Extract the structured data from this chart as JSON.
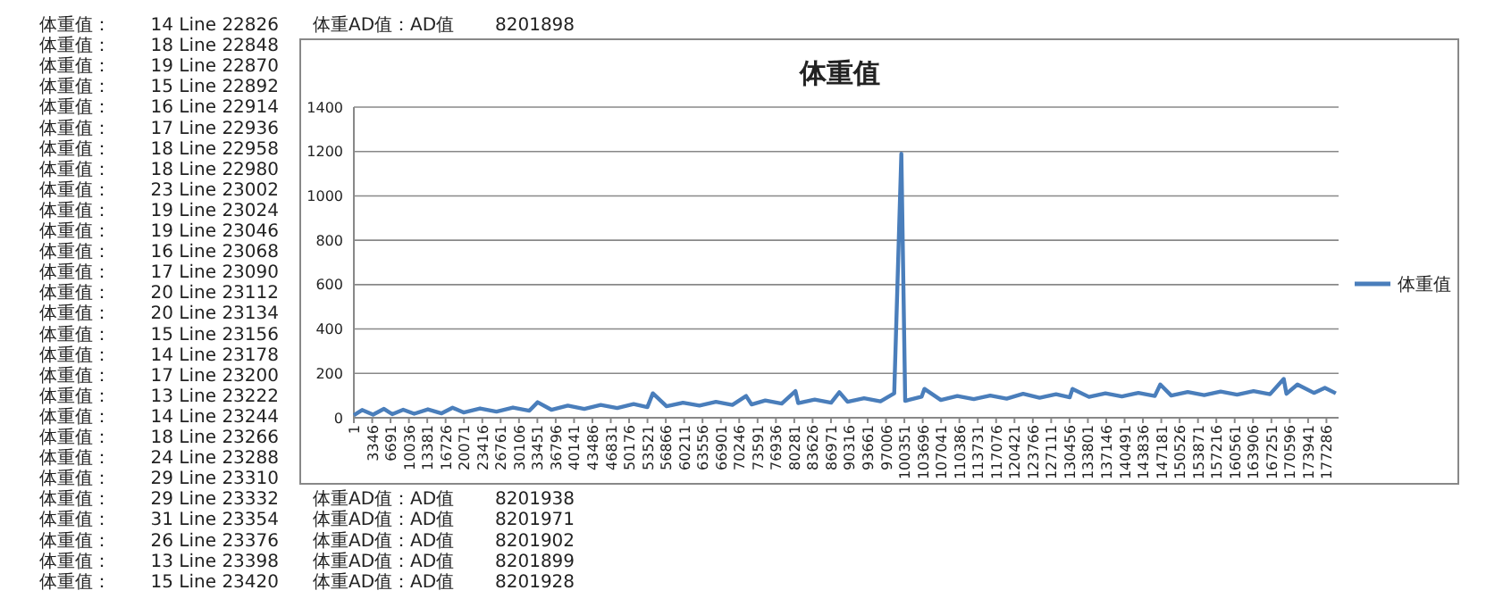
{
  "chart_data": {
    "type": "line",
    "title": "体重值",
    "x": [
      1,
      1500,
      3500,
      5500,
      7000,
      9000,
      11000,
      13500,
      16000,
      18000,
      20000,
      23000,
      26000,
      29000,
      32000,
      33500,
      36000,
      39000,
      42000,
      45000,
      48000,
      51000,
      53500,
      54500,
      57000,
      60000,
      63000,
      66000,
      69000,
      71500,
      72500,
      75000,
      78000,
      80500,
      81000,
      84000,
      87000,
      88500,
      90000,
      93000,
      96000,
      98500,
      99800,
      100500,
      103500,
      104000,
      107000,
      110000,
      113000,
      116000,
      119000,
      122000,
      125000,
      128000,
      130500,
      131000,
      134000,
      137000,
      140000,
      143000,
      146000,
      147000,
      149000,
      152000,
      155000,
      158000,
      161000,
      164000,
      167000,
      169500,
      170000,
      172000,
      175000,
      177000,
      179000
    ],
    "series": [
      {
        "name": "体重值",
        "color": "#4a7ebb",
        "values": [
          12,
          35,
          14,
          40,
          16,
          36,
          18,
          38,
          20,
          45,
          24,
          42,
          28,
          46,
          32,
          70,
          36,
          55,
          40,
          58,
          44,
          62,
          48,
          110,
          52,
          68,
          55,
          72,
          58,
          98,
          60,
          78,
          64,
          120,
          66,
          82,
          68,
          115,
          72,
          88,
          74,
          110,
          1190,
          76,
          95,
          130,
          80,
          98,
          84,
          100,
          86,
          108,
          90,
          106,
          92,
          130,
          94,
          110,
          96,
          112,
          98,
          150,
          100,
          116,
          102,
          118,
          104,
          120,
          106,
          175,
          108,
          150,
          112,
          135,
          110
        ]
      }
    ],
    "xlim": [
      1,
      179500
    ],
    "xticks": [
      1,
      3346,
      6691,
      10036,
      13381,
      16726,
      20071,
      23416,
      26761,
      30106,
      33451,
      36796,
      40141,
      43486,
      46831,
      50176,
      53521,
      56866,
      60211,
      63556,
      66901,
      70246,
      73591,
      76936,
      80281,
      83626,
      86971,
      90316,
      93661,
      97006,
      100351,
      103696,
      107041,
      110386,
      113731,
      117076,
      120421,
      123766,
      127111,
      130456,
      133801,
      137146,
      140491,
      143836,
      147181,
      150526,
      153871,
      157216,
      160561,
      163906,
      167251,
      170596,
      173941,
      177286
    ],
    "ylim": [
      0,
      1400
    ],
    "yticks": [
      0,
      200,
      400,
      600,
      800,
      1000,
      1200,
      1400
    ],
    "grid": "y",
    "legend": "right",
    "marker": "none",
    "line_style": "solid",
    "annotations": [
      "体重值：",
      "14 Line 22826",
      "体重值：",
      "18 Line 22848",
      "体重值：",
      "19 Line 22870",
      "体重值：",
      "15 Line 22892",
      "体重值：",
      "16 Line 22914",
      "体重值：",
      "17 Line 22936",
      "体重值：",
      "18 Line 22958",
      "体重值：",
      "18 Line 22980",
      "体重值：",
      "23 Line 23002",
      "体重值：",
      "19 Line 23024",
      "体重值：",
      "19 Line 23046",
      "体重值：",
      "16 Line 23068",
      "体重值：",
      "17 Line 23090",
      "体重值：",
      "20 Line 23112",
      "体重值：",
      "20 Line 23134",
      "体重值：",
      "15 Line 23156",
      "体重值：",
      "14 Line 23178",
      "体重值：",
      "17 Line 23200",
      "体重值：",
      "13 Line 23222",
      "体重值：",
      "14 Line 23244",
      "体重值：",
      "18 Line 23266",
      "体重值：",
      "24 Line 23288",
      "体重值：",
      "29 Line 23310",
      "体重值：",
      "29 Line 23332",
      "体重值：",
      "31 Line 23354",
      "体重值：",
      "26 Line 23376",
      "体重值：",
      "13 Line 23398",
      "体重值：",
      "15 Line 23420",
      "体重AD值：AD值",
      "8201898",
      "体重AD值：AD值",
      "8201938",
      "体重AD值：AD值",
      "8201971",
      "体重AD值：AD值",
      "8201902",
      "体重AD值：AD值",
      "8201899",
      "体重AD值：AD值",
      "8201928"
    ]
  }
}
